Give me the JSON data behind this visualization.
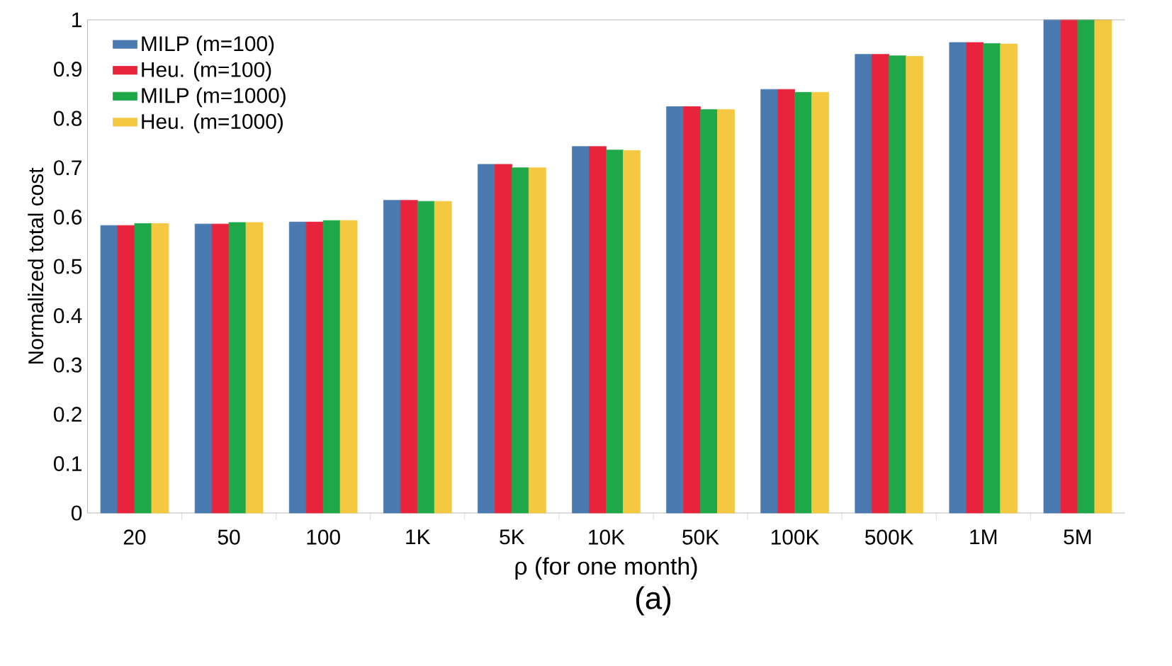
{
  "chart_data": {
    "type": "bar",
    "xlabel": "ρ (for one month)",
    "ylabel": "Normalized total cost",
    "annotations": [
      "(a)"
    ],
    "categories": [
      "20",
      "50",
      "100",
      "1K",
      "5K",
      "10K",
      "50K",
      "100K",
      "500K",
      "1M",
      "5M"
    ],
    "series": [
      {
        "name": "MILP (m=100)",
        "color": "#4a7ab0",
        "values": [
          0.583,
          0.586,
          0.59,
          0.634,
          0.707,
          0.743,
          0.824,
          0.859,
          0.93,
          0.954,
          1
        ]
      },
      {
        "name": "Heu. (m=100)",
        "color": "#e8243c",
        "values": [
          0.583,
          0.586,
          0.59,
          0.634,
          0.707,
          0.743,
          0.824,
          0.859,
          0.93,
          0.954,
          1
        ]
      },
      {
        "name": "MILP (m=1000)",
        "color": "#1fa84a",
        "values": [
          0.587,
          0.589,
          0.593,
          0.632,
          0.7,
          0.736,
          0.818,
          0.853,
          0.927,
          0.952,
          1
        ]
      },
      {
        "name": "Heu. (m=1000)",
        "color": "#f5c842",
        "values": [
          0.587,
          0.589,
          0.593,
          0.632,
          0.7,
          0.735,
          0.818,
          0.853,
          0.926,
          0.951,
          1
        ]
      }
    ],
    "ylim": [
      0,
      1
    ],
    "yticks": [
      0,
      0.1,
      0.2,
      0.3,
      0.4,
      0.5,
      0.6,
      0.7,
      0.8,
      0.9,
      1
    ],
    "grid": false,
    "legend": "top left"
  }
}
